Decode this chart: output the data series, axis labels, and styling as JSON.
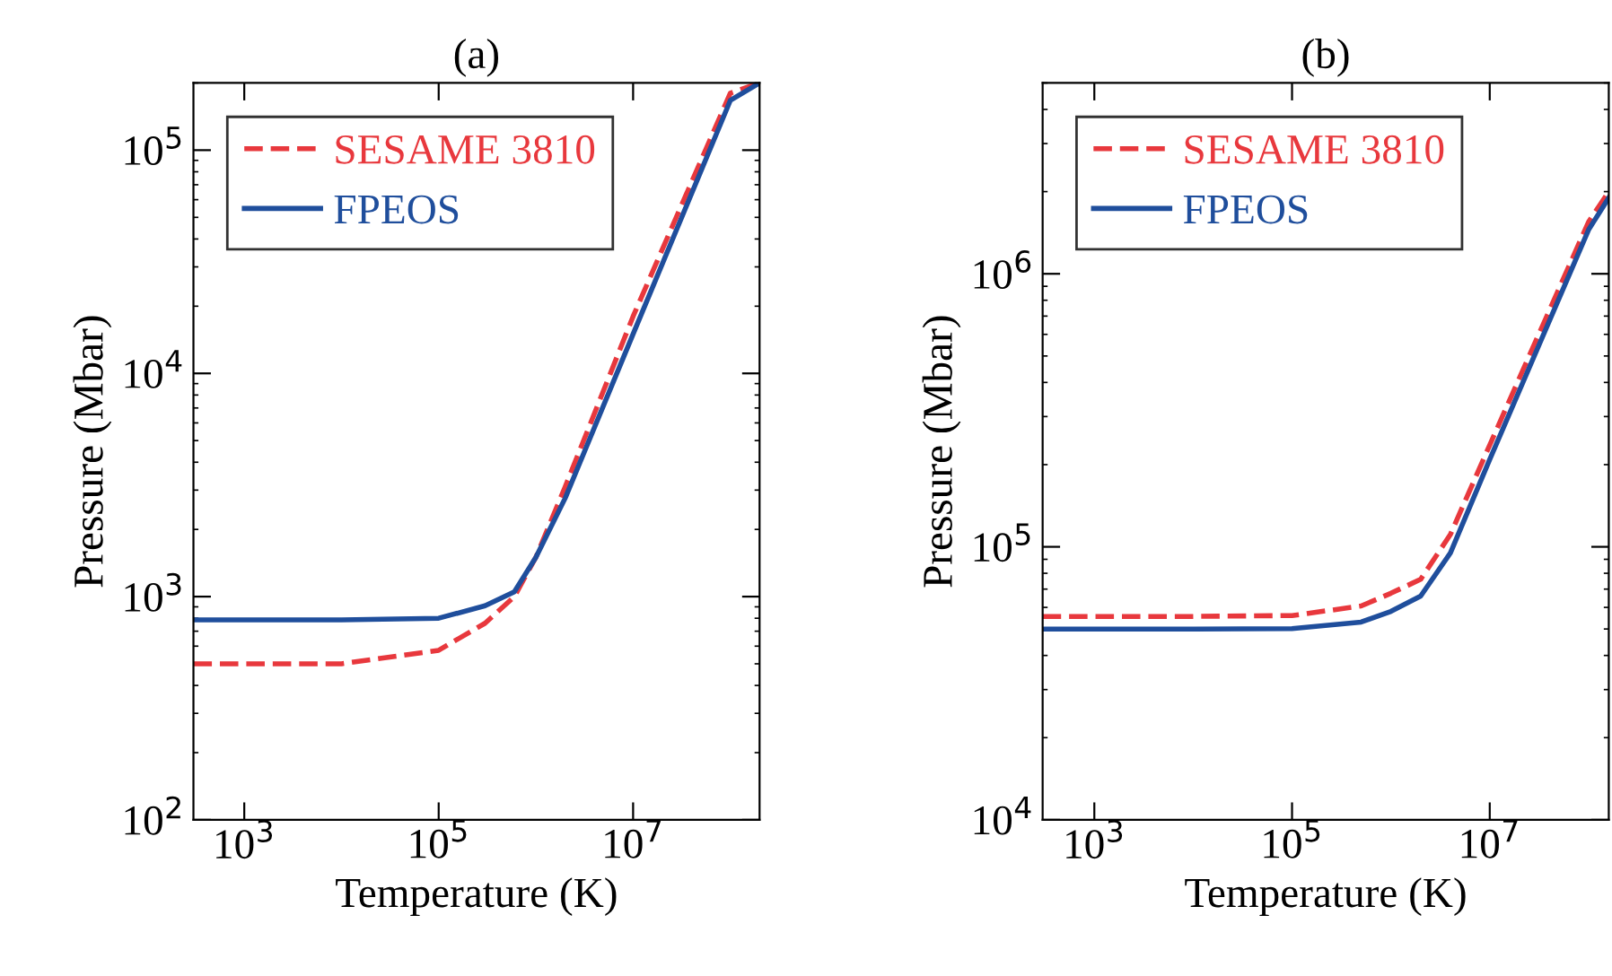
{
  "chart_data": [
    {
      "type": "line",
      "title": "(a)",
      "xlabel": "Temperature (K)",
      "ylabel": "Pressure (Mbar)",
      "log": "xy",
      "legend": "top left",
      "grid": false,
      "xlim": [
        300,
        200000000
      ],
      "ylim": [
        100,
        200000
      ],
      "xticks": [
        {
          "value": 1000,
          "label": "10$^{3}$"
        },
        {
          "value": 100000,
          "label": "10$^{5}$"
        },
        {
          "value": 10000000,
          "label": "10$^{7}$"
        }
      ],
      "yticks": [
        {
          "value": 100,
          "label": "10$^{2}$"
        },
        {
          "value": 1000,
          "label": "10$^{3}$"
        },
        {
          "value": 10000,
          "label": "10$^{4}$"
        },
        {
          "value": 100000,
          "label": "10$^{5}$"
        }
      ],
      "series": [
        {
          "name": "SESAME 3810",
          "color": "#e8383d",
          "line_style": "dashed",
          "x": [
            300,
            10000,
            100000,
            300000,
            600000,
            1000000,
            2000000,
            10000000,
            100000000,
            200000000
          ],
          "values": [
            500,
            500,
            575,
            760,
            1000,
            1500,
            3100,
            18000,
            180000,
            200000
          ]
        },
        {
          "name": "FPEOS",
          "color": "#1f4e9c",
          "line_style": "solid",
          "x": [
            300,
            10000,
            100000,
            300000,
            600000,
            1000000,
            2000000,
            10000000,
            100000000,
            200000000
          ],
          "values": [
            787,
            787,
            800,
            910,
            1050,
            1500,
            2760,
            15000,
            167000,
            200000
          ]
        }
      ]
    },
    {
      "type": "line",
      "title": "(b)",
      "xlabel": "Temperature (K)",
      "ylabel": "Pressure (Mbar)",
      "log": "xy",
      "legend": "top left",
      "grid": false,
      "xlim": [
        300,
        160000000
      ],
      "ylim": [
        10000,
        5000000
      ],
      "xticks": [
        {
          "value": 1000,
          "label": "10$^{3}$"
        },
        {
          "value": 100000,
          "label": "10$^{5}$"
        },
        {
          "value": 10000000,
          "label": "10$^{7}$"
        }
      ],
      "yticks": [
        {
          "value": 10000,
          "label": "10$^{4}$"
        },
        {
          "value": 100000,
          "label": "10$^{5}$"
        },
        {
          "value": 1000000,
          "label": "10$^{6}$"
        }
      ],
      "series": [
        {
          "name": "SESAME 3810",
          "color": "#e8383d",
          "line_style": "dashed",
          "x": [
            300,
            10000,
            100000,
            500000,
            1000000,
            2000000,
            4000000,
            10000000,
            100000000,
            160000000
          ],
          "values": [
            55600,
            55600,
            56000,
            60700,
            67600,
            76000,
            111000,
            236000,
            1550000,
            2000000
          ]
        },
        {
          "name": "FPEOS",
          "color": "#1f4e9c",
          "line_style": "solid",
          "x": [
            300,
            10000,
            100000,
            500000,
            1000000,
            2000000,
            4000000,
            10000000,
            100000000,
            160000000
          ],
          "values": [
            50000,
            50000,
            50200,
            53000,
            58000,
            66000,
            95000,
            209000,
            1450000,
            1900000
          ]
        }
      ]
    }
  ]
}
